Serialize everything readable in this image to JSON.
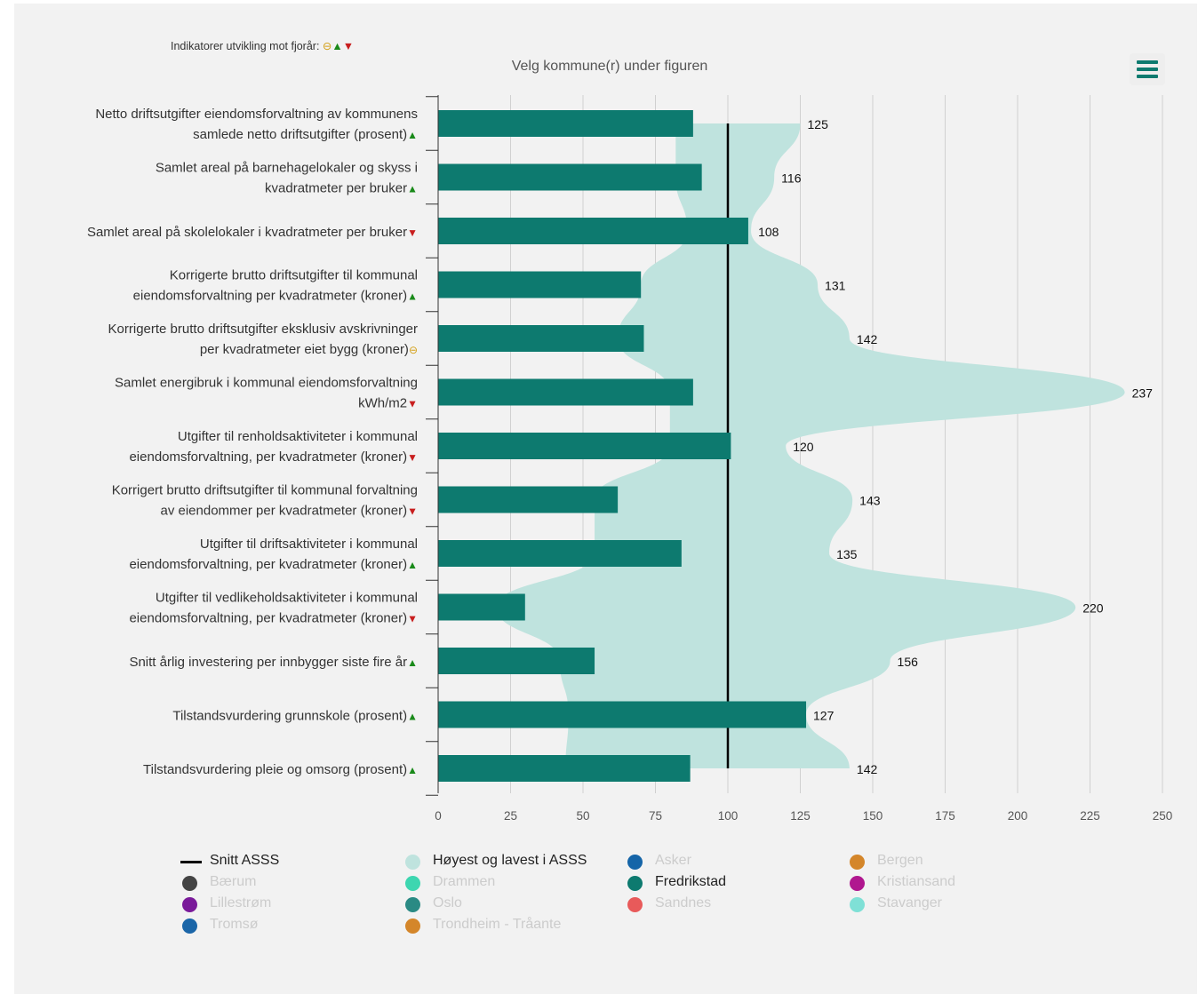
{
  "header": {
    "indicators_label": "Indikatorer utvikling mot fjorår:",
    "indicator_symbols": {
      "neutral": "⊖",
      "up": "▲",
      "down": "▼"
    },
    "subtitle": "Velg kommune(r) under figuren"
  },
  "colors": {
    "bar": "#0d7a6f",
    "band": "#bfe3de",
    "avg_line": "#000000",
    "up": "#1a8a1a",
    "down": "#c81e1e",
    "neutral": "#d4a017"
  },
  "chart_data": {
    "type": "bar",
    "orientation": "horizontal",
    "xlim": [
      0,
      250
    ],
    "x_ticks": [
      "0",
      "25",
      "50",
      "75",
      "100",
      "125",
      "150",
      "175",
      "200",
      "225",
      "250"
    ],
    "categories": [
      {
        "line1": "Netto driftsutgifter eiendomsforvaltning av kommunens",
        "line2": "samlede netto driftsutgifter (prosent)",
        "trend": "up"
      },
      {
        "line1": "Samlet areal på barnehagelokaler og skyss i",
        "line2": "kvadratmeter per bruker",
        "trend": "up"
      },
      {
        "line1": "",
        "line2": "Samlet areal på skolelokaler i kvadratmeter per bruker",
        "trend": "down"
      },
      {
        "line1": "Korrigerte brutto driftsutgifter til kommunal",
        "line2": "eiendomsforvaltning per kvadratmeter (kroner)",
        "trend": "up"
      },
      {
        "line1": "Korrigerte brutto driftsutgifter eksklusiv avskrivninger",
        "line2": "per kvadratmeter eiet bygg (kroner)",
        "trend": "neutral"
      },
      {
        "line1": "Samlet energibruk i kommunal eiendomsforvaltning",
        "line2": "kWh/m2",
        "trend": "down"
      },
      {
        "line1": "Utgifter til renholdsaktiviteter i kommunal",
        "line2": "eiendomsforvaltning, per kvadratmeter (kroner)",
        "trend": "down"
      },
      {
        "line1": "Korrigert brutto driftsutgifter til kommunal forvaltning",
        "line2": "av eiendommer per kvadratmeter (kroner)",
        "trend": "down"
      },
      {
        "line1": "Utgifter til driftsaktiviteter i kommunal",
        "line2": "eiendomsforvaltning, per kvadratmeter (kroner)",
        "trend": "up"
      },
      {
        "line1": "Utgifter til vedlikeholdsaktiviteter i kommunal",
        "line2": "eiendomsforvaltning, per kvadratmeter (kroner)",
        "trend": "down"
      },
      {
        "line1": "",
        "line2": "Snitt årlig investering per innbygger siste fire år",
        "trend": "up"
      },
      {
        "line1": "",
        "line2": "Tilstandsvurdering grunnskole (prosent)",
        "trend": "up"
      },
      {
        "line1": "",
        "line2": "Tilstandsvurdering pleie og omsorg (prosent)",
        "trend": "up"
      }
    ],
    "series": [
      {
        "name": "Fredrikstad",
        "values": [
          88,
          91,
          107,
          70,
          71,
          88,
          101,
          62,
          84,
          30,
          54,
          127,
          87
        ]
      },
      {
        "name": "Snitt ASSS",
        "values": [
          100,
          100,
          100,
          100,
          100,
          100,
          100,
          100,
          100,
          100,
          100,
          100,
          100
        ]
      },
      {
        "name": "Høyest og lavest i ASSS",
        "low": [
          82,
          82,
          86,
          70,
          62,
          80,
          80,
          54,
          54,
          20,
          42,
          45,
          44
        ],
        "high": [
          125,
          116,
          108,
          131,
          142,
          237,
          120,
          143,
          135,
          220,
          156,
          127,
          142
        ]
      }
    ],
    "max_labels": [
      "125",
      "116",
      "108",
      "131",
      "142",
      "237",
      "120",
      "143",
      "135",
      "220",
      "156",
      "127",
      "142"
    ]
  },
  "legend": [
    {
      "label": "Snitt ASSS",
      "kind": "line",
      "color": "#000000",
      "active": true
    },
    {
      "label": "Høyest og lavest i ASSS",
      "kind": "dot",
      "color": "#bfe3de",
      "active": true
    },
    {
      "label": "Asker",
      "kind": "dot",
      "color": "#1565a8",
      "active": false
    },
    {
      "label": "Bergen",
      "kind": "dot",
      "color": "#d4862a",
      "active": false
    },
    {
      "label": "Bærum",
      "kind": "dot",
      "color": "#444444",
      "active": false
    },
    {
      "label": "Drammen",
      "kind": "dot",
      "color": "#3dd6b0",
      "active": false
    },
    {
      "label": "Fredrikstad",
      "kind": "dot",
      "color": "#0d7a6f",
      "active": true
    },
    {
      "label": "Kristiansand",
      "kind": "dot",
      "color": "#b0178f",
      "active": false
    },
    {
      "label": "Lillestrøm",
      "kind": "dot",
      "color": "#7a1a9a",
      "active": false
    },
    {
      "label": "Oslo",
      "kind": "dot",
      "color": "#2a8a84",
      "active": false
    },
    {
      "label": "Sandnes",
      "kind": "dot",
      "color": "#e85a5a",
      "active": false
    },
    {
      "label": "Stavanger",
      "kind": "dot",
      "color": "#7fe0d6",
      "active": false
    },
    {
      "label": "Tromsø",
      "kind": "dot",
      "color": "#1b66a8",
      "active": false
    },
    {
      "label": "Trondheim - Tråante",
      "kind": "dot",
      "color": "#d4862a",
      "active": false
    }
  ]
}
